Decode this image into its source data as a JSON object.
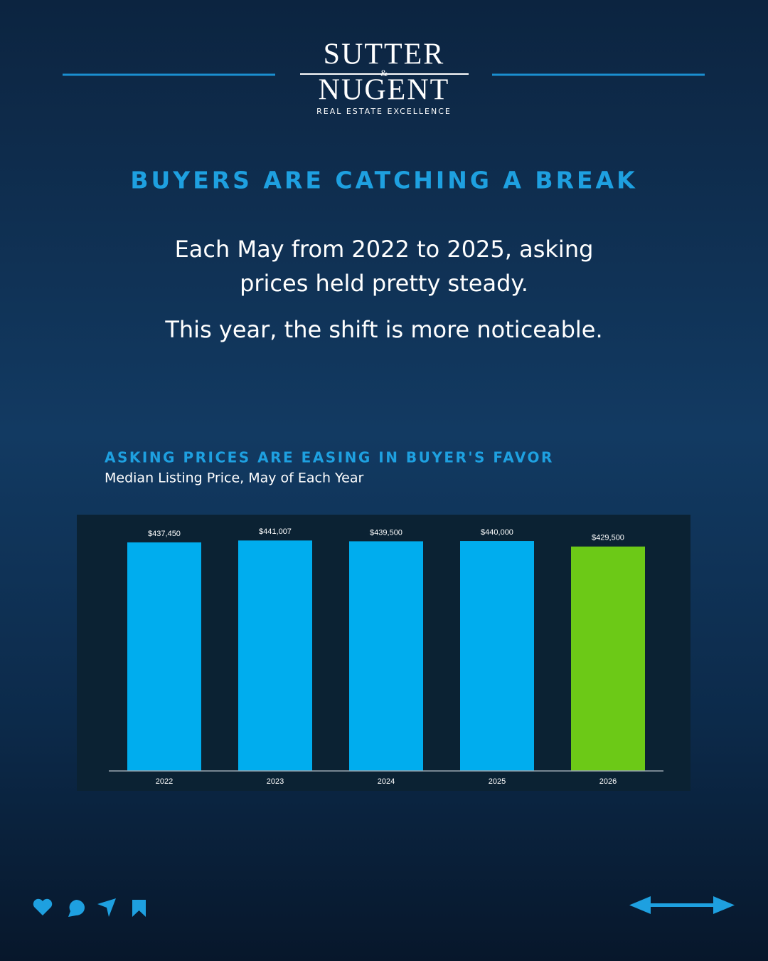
{
  "header": {
    "brand_top": "SUTTER",
    "brand_amp": "&",
    "brand_bottom": "NUGENT",
    "tagline": "REAL ESTATE EXCELLENCE"
  },
  "headline": "BUYERS ARE CATCHING A BREAK",
  "body": [
    "Each May from 2022 to 2025, asking",
    "prices held pretty steady.",
    "This year, the shift is more noticeable."
  ],
  "chart_data": {
    "type": "bar",
    "title": "ASKING PRICES ARE EASING IN BUYER'S FAVOR",
    "subtitle": "Median Listing Price, May of Each Year",
    "categories": [
      "2022",
      "2023",
      "2024",
      "2025",
      "2026"
    ],
    "values": [
      437450,
      441007,
      439500,
      440000,
      429500
    ],
    "value_labels": [
      "$437,450",
      "$441,007",
      "$439,500",
      "$440,000",
      "$429,500"
    ],
    "colors": [
      "#00adee",
      "#00adee",
      "#00adee",
      "#00adee",
      "#6cc917"
    ],
    "ylim": [
      0,
      500000
    ]
  }
}
